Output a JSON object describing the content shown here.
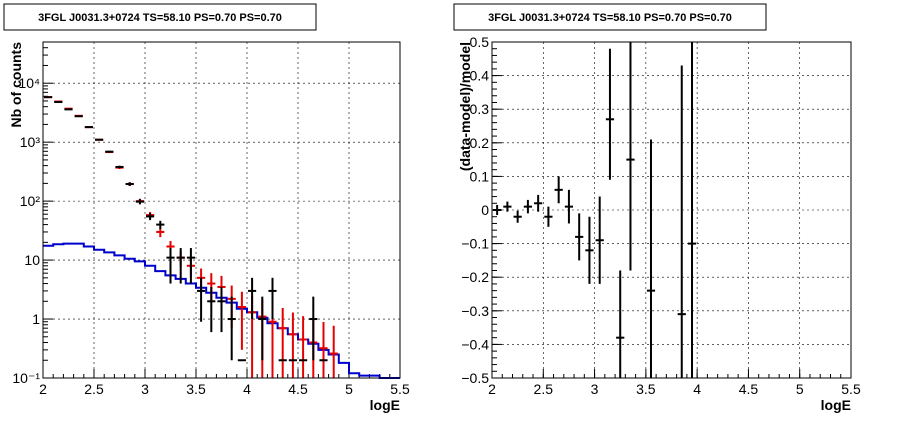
{
  "chart_data": [
    {
      "type": "histogram-errorbars",
      "title": "3FGL J0031.3+0724 TS=58.10 PS=0.70 PS=0.70",
      "xlabel": "logE",
      "ylabel": "Nb of counts",
      "xlim": [
        2,
        5.5
      ],
      "ylim": [
        0.1,
        50000
      ],
      "yscale": "log",
      "grid": true,
      "xticks": [
        "2",
        "2.5",
        "3",
        "3.5",
        "4",
        "4.5",
        "5",
        "5.5"
      ],
      "yticks": [
        "10⁻¹",
        "1",
        "10",
        "10²",
        "10³",
        "10⁴"
      ],
      "colors": {
        "data": "#000000",
        "model": "#e60000",
        "background": "#0000cc"
      },
      "bin_width": 0.1,
      "series": [
        {
          "role": "data",
          "x": [
            2.05,
            2.15,
            2.25,
            2.35,
            2.45,
            2.55,
            2.65,
            2.75,
            2.85,
            2.95,
            3.05,
            3.15,
            3.25,
            3.35,
            3.45,
            3.55,
            3.65,
            3.75,
            3.85,
            3.95,
            4.05,
            4.15,
            4.25,
            4.35,
            4.45,
            4.55,
            4.65,
            4.75
          ],
          "y": [
            5800,
            4800,
            3600,
            2750,
            1800,
            1100,
            690,
            380,
            195,
            98,
            55,
            40,
            11,
            11,
            11,
            3,
            2,
            2,
            1,
            0.2,
            3,
            1,
            3,
            0.2,
            0.2,
            0.2,
            1,
            0.2
          ],
          "yerr_low": [
            77,
            70,
            60,
            53,
            43,
            33,
            26,
            19,
            14,
            9.9,
            7.4,
            6.3,
            7,
            7,
            7,
            2.1,
            1.4,
            1.4,
            0.8,
            0,
            2,
            0.8,
            2,
            0,
            0,
            0,
            0.8,
            0
          ],
          "yerr_high": [
            77,
            70,
            60,
            53,
            43,
            33,
            26,
            19,
            14,
            9.9,
            7.4,
            6.3,
            5,
            5,
            5,
            2,
            1.5,
            1.5,
            1.4,
            0,
            2,
            1.4,
            2,
            0,
            0,
            0,
            1.4,
            0
          ]
        },
        {
          "role": "model",
          "x": [
            2.05,
            2.15,
            2.25,
            2.35,
            2.45,
            2.55,
            2.65,
            2.75,
            2.85,
            2.95,
            3.05,
            3.15,
            3.25,
            3.35,
            3.45,
            3.55,
            3.65,
            3.75,
            3.85,
            3.95,
            4.05,
            4.15,
            4.25,
            4.35,
            4.45,
            4.55,
            4.65,
            4.75,
            4.85
          ],
          "y": [
            5800,
            4900,
            3700,
            2800,
            1800,
            1100,
            680,
            370,
            195,
            100,
            58,
            30,
            17,
            11,
            8,
            5,
            4,
            3.5,
            2.2,
            1.6,
            1.3,
            1.1,
            0.9,
            0.7,
            0.55,
            0.45,
            0.4,
            0.32,
            0.26
          ],
          "yerr_low": [
            76,
            70,
            61,
            53,
            42,
            33,
            26,
            19,
            14,
            10,
            7.6,
            5.5,
            4.1,
            3.3,
            2.8,
            2.2,
            2,
            1.9,
            1.5,
            1.3,
            1.2,
            1.05,
            0.95,
            0.84,
            0.74,
            0.67,
            0.63,
            0.57,
            0.51
          ],
          "yerr_high": [
            76,
            70,
            61,
            53,
            42,
            33,
            26,
            19,
            14,
            10,
            7.6,
            5.5,
            4.1,
            3.3,
            2.8,
            2.2,
            2,
            1.9,
            1.5,
            1.3,
            1.2,
            1.05,
            0.95,
            0.84,
            0.74,
            0.67,
            0.63,
            0.57,
            0.51
          ]
        },
        {
          "role": "background",
          "x": [
            2.05,
            2.15,
            2.25,
            2.35,
            2.45,
            2.55,
            2.65,
            2.75,
            2.85,
            2.95,
            3.05,
            3.15,
            3.25,
            3.35,
            3.45,
            3.55,
            3.65,
            3.75,
            3.85,
            3.95,
            4.05,
            4.15,
            4.25,
            4.35,
            4.45,
            4.55,
            4.65,
            4.75,
            4.85,
            4.95,
            5.05,
            5.15,
            5.25,
            5.35,
            5.45
          ],
          "y": [
            17.5,
            18.5,
            19,
            19,
            17,
            15,
            13.5,
            12,
            10.5,
            9.5,
            8,
            6.5,
            5.5,
            4.8,
            4,
            3.4,
            2.8,
            2.3,
            1.9,
            1.5,
            1.3,
            1.05,
            0.85,
            0.7,
            0.55,
            0.45,
            0.38,
            0.3,
            0.25,
            0.18,
            0.12,
            0.11,
            0.11,
            0.1,
            0.1
          ]
        }
      ]
    },
    {
      "type": "scatter-errorbars",
      "title": "3FGL J0031.3+0724 TS=58.10 PS=0.70 PS=0.70",
      "xlabel": "logE",
      "ylabel": "(data-model)/model",
      "xlim": [
        2,
        5.5
      ],
      "ylim": [
        -0.5,
        0.5
      ],
      "grid": true,
      "xticks": [
        "2",
        "2.5",
        "3",
        "3.5",
        "4",
        "4.5",
        "5",
        "5.5"
      ],
      "yticks": [
        "−0.5",
        "−0.4",
        "−0.3",
        "−0.2",
        "−0.1",
        "0",
        "0.1",
        "0.2",
        "0.3",
        "0.4",
        "0.5"
      ],
      "bin_width": 0.1,
      "series": [
        {
          "role": "residual",
          "x": [
            2.05,
            2.15,
            2.25,
            2.35,
            2.45,
            2.55,
            2.65,
            2.75,
            2.85,
            2.95,
            3.05,
            3.15,
            3.25,
            3.35,
            3.55,
            3.85,
            3.95
          ],
          "y": [
            0.0,
            0.01,
            -0.02,
            0.01,
            0.02,
            -0.02,
            0.06,
            0.01,
            -0.08,
            -0.12,
            -0.09,
            0.27,
            -0.38,
            0.15,
            -0.24,
            -0.31,
            -0.1
          ],
          "yerr_low": [
            0.015,
            0.015,
            0.018,
            0.02,
            0.025,
            0.03,
            0.04,
            0.05,
            0.07,
            0.1,
            0.13,
            0.18,
            0.12,
            0.33,
            0.26,
            0.19,
            0.4
          ],
          "yerr_high": [
            0.015,
            0.015,
            0.018,
            0.02,
            0.025,
            0.03,
            0.04,
            0.05,
            0.07,
            0.1,
            0.13,
            0.21,
            0.2,
            0.35,
            0.45,
            0.74,
            0.6
          ]
        }
      ]
    }
  ]
}
